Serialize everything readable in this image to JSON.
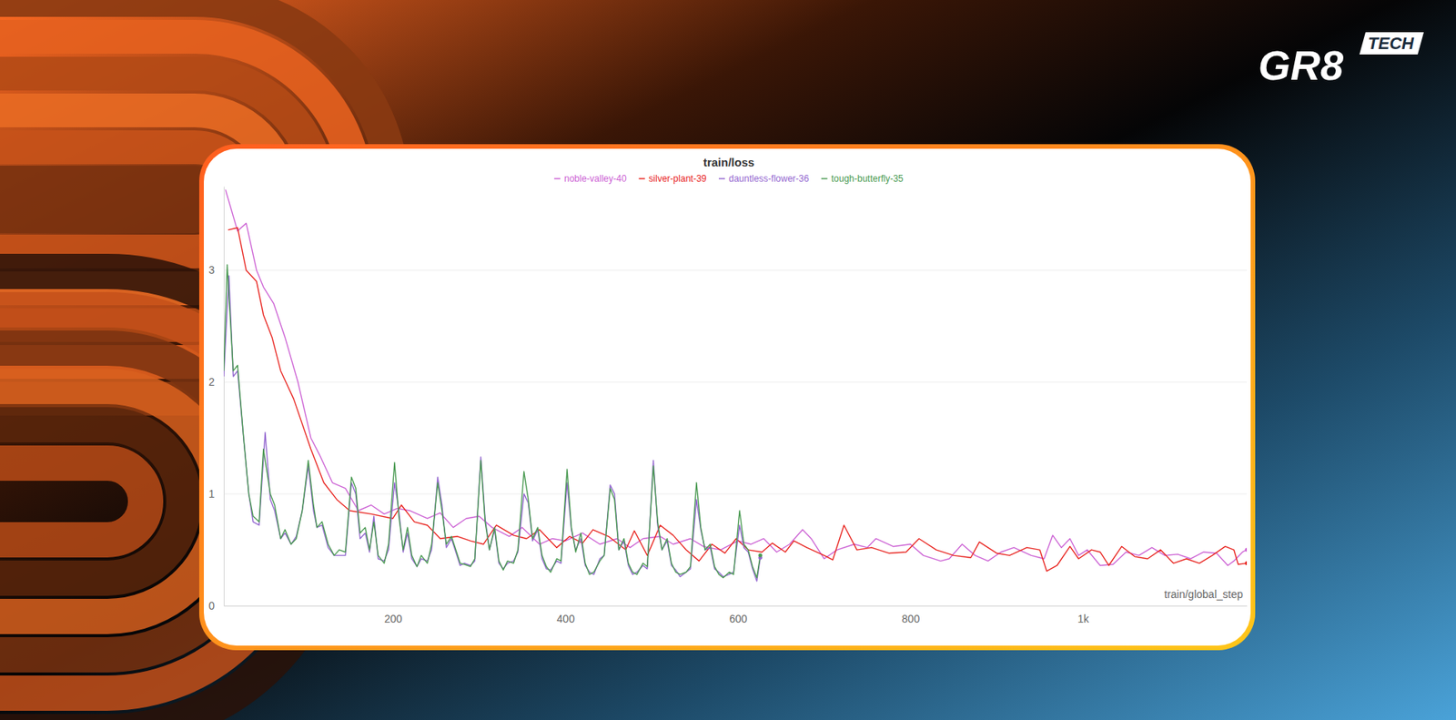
{
  "chart_data": {
    "type": "line",
    "title": "train/loss",
    "x_label": "train/global_step",
    "xlim": [
      4,
      1190
    ],
    "xticks": [
      200,
      400,
      600,
      800,
      {
        "value": 1000,
        "label": "1k"
      }
    ],
    "ylim": [
      0,
      3.75
    ],
    "yticks": [
      0,
      1,
      2,
      3
    ],
    "grid": true,
    "legend": "top",
    "series": [
      {
        "name": "noble-valley-40",
        "color": "#cc62d4",
        "x": [
          6,
          20,
          30,
          42,
          50,
          62,
          75,
          90,
          105,
          115,
          130,
          145,
          160,
          175,
          190,
          205,
          220,
          240,
          255,
          270,
          285,
          300,
          315,
          335,
          350,
          370,
          385,
          400,
          420,
          440,
          460,
          475,
          490,
          510,
          525,
          545,
          560,
          580,
          600,
          615,
          630,
          645,
          660,
          675,
          685,
          700,
          715,
          735,
          750,
          760,
          780,
          800,
          815,
          835,
          845,
          860,
          875,
          890,
          905,
          920,
          940,
          955,
          965,
          975,
          985,
          995,
          1005,
          1020,
          1035,
          1050,
          1065,
          1080,
          1095,
          1110,
          1125,
          1140,
          1155,
          1168,
          1175,
          1185,
          1190
        ],
        "values": [
          3.72,
          3.35,
          3.42,
          3.0,
          2.85,
          2.7,
          2.4,
          2.0,
          1.5,
          1.35,
          1.1,
          1.05,
          0.85,
          0.9,
          0.82,
          0.87,
          0.85,
          0.78,
          0.83,
          0.7,
          0.78,
          0.8,
          0.7,
          0.62,
          0.7,
          0.55,
          0.6,
          0.58,
          0.65,
          0.55,
          0.6,
          0.52,
          0.6,
          0.62,
          0.55,
          0.6,
          0.53,
          0.5,
          0.58,
          0.55,
          0.6,
          0.48,
          0.55,
          0.68,
          0.6,
          0.42,
          0.5,
          0.55,
          0.52,
          0.6,
          0.53,
          0.55,
          0.45,
          0.4,
          0.42,
          0.55,
          0.45,
          0.4,
          0.48,
          0.52,
          0.45,
          0.42,
          0.63,
          0.52,
          0.6,
          0.45,
          0.5,
          0.36,
          0.37,
          0.48,
          0.45,
          0.52,
          0.45,
          0.46,
          0.42,
          0.48,
          0.47,
          0.36,
          0.4,
          0.48,
          0.5
        ]
      },
      {
        "name": "silver-plant-39",
        "color": "#e8231e",
        "x": [
          9,
          20,
          30,
          42,
          50,
          60,
          70,
          85,
          105,
          120,
          135,
          150,
          175,
          200,
          210,
          225,
          240,
          255,
          275,
          290,
          305,
          320,
          340,
          355,
          370,
          390,
          405,
          420,
          432,
          450,
          470,
          480,
          495,
          510,
          525,
          540,
          555,
          570,
          585,
          598,
          612,
          628,
          640,
          655,
          665,
          680,
          700,
          710,
          723,
          738,
          755,
          775,
          795,
          810,
          830,
          850,
          870,
          880,
          900,
          915,
          935,
          950,
          958,
          970,
          985,
          995,
          1010,
          1020,
          1030,
          1045,
          1060,
          1075,
          1090,
          1105,
          1120,
          1135,
          1150,
          1165,
          1175,
          1180,
          1190
        ],
        "values": [
          3.36,
          3.38,
          3.0,
          2.9,
          2.6,
          2.4,
          2.1,
          1.85,
          1.4,
          1.1,
          0.95,
          0.85,
          0.82,
          0.78,
          0.9,
          0.75,
          0.72,
          0.6,
          0.62,
          0.58,
          0.55,
          0.72,
          0.63,
          0.6,
          0.68,
          0.52,
          0.62,
          0.56,
          0.68,
          0.62,
          0.5,
          0.67,
          0.45,
          0.72,
          0.63,
          0.5,
          0.4,
          0.55,
          0.47,
          0.6,
          0.5,
          0.48,
          0.56,
          0.48,
          0.58,
          0.52,
          0.45,
          0.41,
          0.72,
          0.5,
          0.52,
          0.47,
          0.48,
          0.6,
          0.5,
          0.45,
          0.43,
          0.57,
          0.47,
          0.45,
          0.52,
          0.5,
          0.31,
          0.36,
          0.53,
          0.42,
          0.5,
          0.48,
          0.36,
          0.53,
          0.44,
          0.42,
          0.5,
          0.38,
          0.42,
          0.38,
          0.45,
          0.53,
          0.5,
          0.37,
          0.38
        ]
      },
      {
        "name": "dauntless-flower-36",
        "color": "#9468d0",
        "x": [
          4,
          10,
          15,
          20,
          27,
          33,
          38,
          45,
          52,
          58,
          63,
          70,
          75,
          82,
          88,
          95,
          102,
          108,
          112,
          118,
          125,
          132,
          138,
          145,
          152,
          157,
          162,
          168,
          173,
          178,
          183,
          190,
          195,
          202,
          207,
          212,
          217,
          222,
          228,
          233,
          240,
          245,
          252,
          257,
          262,
          268,
          273,
          278,
          283,
          290,
          295,
          302,
          307,
          312,
          318,
          323,
          328,
          333,
          340,
          345,
          352,
          357,
          362,
          368,
          373,
          378,
          383,
          390,
          395,
          402,
          407,
          412,
          418,
          423,
          428,
          433,
          440,
          445,
          452,
          457,
          462,
          468,
          473,
          478,
          483,
          490,
          495,
          502,
          507,
          512,
          518,
          523,
          528,
          533,
          540,
          545,
          552,
          557,
          562,
          568,
          573,
          578,
          583,
          590,
          595,
          602,
          607,
          612,
          617,
          622,
          626
        ],
        "values": [
          2.05,
          2.95,
          2.05,
          2.1,
          1.5,
          1.0,
          0.75,
          0.72,
          1.55,
          0.95,
          0.85,
          0.6,
          0.65,
          0.55,
          0.62,
          0.85,
          1.25,
          0.85,
          0.7,
          0.72,
          0.52,
          0.45,
          0.45,
          0.45,
          1.1,
          1.0,
          0.6,
          0.65,
          0.48,
          0.8,
          0.42,
          0.4,
          0.5,
          1.1,
          0.85,
          0.48,
          0.65,
          0.42,
          0.35,
          0.42,
          0.4,
          0.5,
          1.15,
          0.9,
          0.52,
          0.6,
          0.48,
          0.36,
          0.38,
          0.36,
          0.4,
          1.33,
          0.78,
          0.5,
          0.68,
          0.38,
          0.33,
          0.38,
          0.4,
          0.48,
          1.0,
          0.92,
          0.58,
          0.68,
          0.42,
          0.33,
          0.32,
          0.4,
          0.38,
          1.1,
          0.68,
          0.5,
          0.6,
          0.36,
          0.3,
          0.28,
          0.42,
          0.45,
          1.08,
          1.0,
          0.5,
          0.58,
          0.36,
          0.28,
          0.3,
          0.36,
          0.33,
          1.3,
          0.72,
          0.5,
          0.58,
          0.36,
          0.32,
          0.26,
          0.3,
          0.33,
          0.95,
          0.68,
          0.5,
          0.52,
          0.33,
          0.3,
          0.26,
          0.28,
          0.3,
          0.72,
          0.52,
          0.48,
          0.33,
          0.22,
          0.43
        ]
      },
      {
        "name": "tough-butterfly-35",
        "color": "#4a9a52",
        "x": [
          4,
          8,
          15,
          20,
          27,
          33,
          38,
          45,
          50,
          58,
          63,
          70,
          75,
          82,
          88,
          95,
          102,
          108,
          112,
          118,
          125,
          132,
          138,
          145,
          152,
          157,
          162,
          168,
          173,
          178,
          183,
          190,
          195,
          202,
          207,
          212,
          217,
          222,
          228,
          233,
          240,
          245,
          252,
          257,
          262,
          268,
          273,
          278,
          283,
          290,
          295,
          302,
          307,
          312,
          318,
          323,
          328,
          333,
          340,
          345,
          352,
          357,
          362,
          368,
          373,
          378,
          383,
          390,
          395,
          402,
          407,
          412,
          418,
          423,
          428,
          433,
          440,
          445,
          452,
          457,
          462,
          468,
          473,
          478,
          483,
          490,
          495,
          502,
          507,
          512,
          518,
          523,
          528,
          533,
          540,
          545,
          552,
          557,
          562,
          568,
          573,
          578,
          583,
          590,
          595,
          602,
          607,
          612,
          617,
          622,
          626
        ],
        "values": [
          2.1,
          3.05,
          2.1,
          2.15,
          1.5,
          1.0,
          0.8,
          0.75,
          1.4,
          1.0,
          0.9,
          0.6,
          0.68,
          0.55,
          0.6,
          0.85,
          1.3,
          0.9,
          0.7,
          0.75,
          0.55,
          0.45,
          0.5,
          0.48,
          1.15,
          1.05,
          0.65,
          0.7,
          0.5,
          0.75,
          0.45,
          0.38,
          0.55,
          1.28,
          0.8,
          0.5,
          0.7,
          0.45,
          0.35,
          0.45,
          0.38,
          0.55,
          1.1,
          0.85,
          0.55,
          0.62,
          0.5,
          0.38,
          0.37,
          0.35,
          0.42,
          1.3,
          0.75,
          0.5,
          0.7,
          0.4,
          0.32,
          0.4,
          0.38,
          0.5,
          1.2,
          0.95,
          0.6,
          0.7,
          0.45,
          0.35,
          0.3,
          0.42,
          0.4,
          1.22,
          0.7,
          0.48,
          0.65,
          0.38,
          0.28,
          0.3,
          0.4,
          0.45,
          1.05,
          0.95,
          0.5,
          0.6,
          0.38,
          0.3,
          0.28,
          0.38,
          0.35,
          1.25,
          0.75,
          0.5,
          0.6,
          0.38,
          0.3,
          0.28,
          0.3,
          0.35,
          1.1,
          0.7,
          0.5,
          0.55,
          0.35,
          0.28,
          0.25,
          0.3,
          0.28,
          0.85,
          0.55,
          0.5,
          0.35,
          0.25,
          0.45
        ]
      }
    ]
  },
  "logo": {
    "text": "GR8",
    "badge": "TECH"
  }
}
